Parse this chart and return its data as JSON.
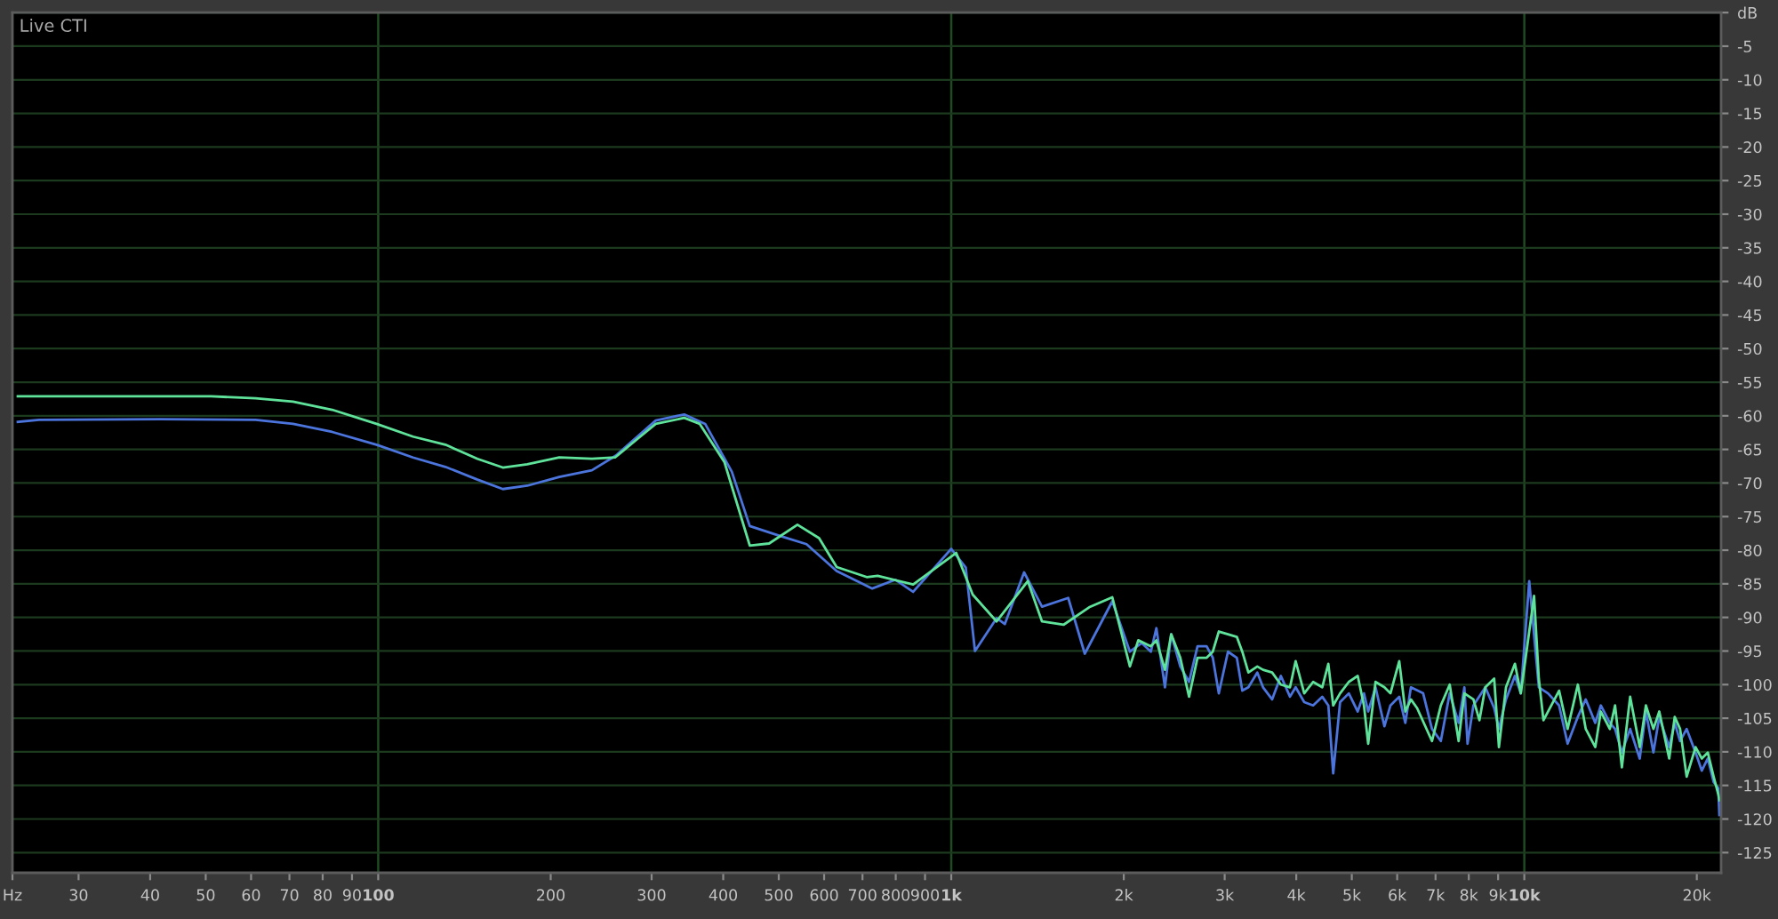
{
  "chart_data": {
    "type": "line",
    "title": "Live CTI",
    "log": "x",
    "xlim": [
      23,
      22050
    ],
    "ylim": [
      -128,
      0
    ],
    "xticks": [
      {
        "value": 23,
        "label": "Hz"
      },
      30,
      40,
      50,
      60,
      70,
      80,
      90,
      100,
      200,
      300,
      400,
      500,
      600,
      700,
      800,
      900,
      {
        "value": 1000,
        "label": "1k"
      },
      {
        "value": 2000,
        "label": "2k"
      },
      {
        "value": 3000,
        "label": "3k"
      },
      {
        "value": 4000,
        "label": "4k"
      },
      {
        "value": 5000,
        "label": "5k"
      },
      {
        "value": 6000,
        "label": "6k"
      },
      {
        "value": 7000,
        "label": "7k"
      },
      {
        "value": 8000,
        "label": "8k"
      },
      {
        "value": 9000,
        "label": "9k"
      },
      {
        "value": 10000,
        "label": "10k"
      },
      {
        "value": 20000,
        "label": "20k"
      }
    ],
    "yticks": [
      {
        "value": 0,
        "label": "dB"
      },
      -5,
      -10,
      -15,
      -20,
      -25,
      -30,
      -35,
      -40,
      -45,
      -50,
      -55,
      -60,
      -65,
      -70,
      -75,
      -80,
      -85,
      -90,
      -95,
      -100,
      -105,
      -110,
      -115,
      -120,
      -125
    ],
    "grid": "y",
    "marker": "none",
    "line_style": "solid",
    "ref_lines": [
      {
        "axis": "x",
        "value": 100,
        "color": "#1f4a22"
      },
      {
        "axis": "x",
        "value": 1000,
        "color": "#1f4a22"
      },
      {
        "axis": "x",
        "value": 10000,
        "color": "#1f4a22"
      }
    ],
    "series": [
      {
        "color": "#4b74dc",
        "x": [
          23.5,
          25.6,
          41.6,
          61.1,
          71,
          83.1,
          99.3,
          115,
          131,
          149,
          165,
          182,
          207,
          236,
          260,
          305,
          342,
          372,
          414,
          445,
          499,
          559,
          631,
          728,
          799,
          858,
          1000,
          1060,
          1100,
          1200,
          1240,
          1340,
          1440,
          1600,
          1710,
          1910,
          2050,
          2150,
          2230,
          2280,
          2360,
          2420,
          2510,
          2600,
          2690,
          2790,
          2860,
          2930,
          3040,
          3150,
          3220,
          3300,
          3420,
          3500,
          3630,
          3760,
          3900,
          3990,
          4130,
          4280,
          4440,
          4550,
          4640,
          4770,
          4940,
          5120,
          5250,
          5340,
          5500,
          5700,
          5840,
          6050,
          6200,
          6340,
          6660,
          6900,
          7150,
          7410,
          7680,
          7860,
          7960,
          8150,
          8550,
          8860,
          9030,
          9290,
          9630,
          9860,
          10200,
          10600,
          11000,
          11500,
          11900,
          12400,
          12800,
          13300,
          13600,
          14100,
          14400,
          14800,
          15300,
          15900,
          16300,
          16800,
          17200,
          17900,
          18300,
          18700,
          19200,
          19900,
          20400,
          20900,
          21400,
          21800,
          21900
        ],
        "values": [
          -60.9,
          -60.6,
          -60.5,
          -60.6,
          -61.2,
          -62.4,
          -64.3,
          -66.2,
          -67.6,
          -69.5,
          -70.9,
          -70.4,
          -69.1,
          -68.1,
          -65.9,
          -60.7,
          -59.8,
          -61.2,
          -68.3,
          -76.4,
          -77.8,
          -79.1,
          -83.1,
          -85.7,
          -84.4,
          -86.2,
          -79.8,
          -82.6,
          -95.0,
          -90.1,
          -91.0,
          -83.3,
          -88.4,
          -87.1,
          -95.4,
          -87.6,
          -95.1,
          -93.8,
          -95.1,
          -91.6,
          -100.4,
          -92.5,
          -97.3,
          -99.6,
          -94.3,
          -94.3,
          -96.0,
          -101.3,
          -95.1,
          -96.0,
          -100.9,
          -100.4,
          -98.2,
          -100.4,
          -102.2,
          -98.7,
          -101.8,
          -100.4,
          -102.6,
          -103.1,
          -101.8,
          -103.1,
          -113.2,
          -102.6,
          -101.3,
          -104.0,
          -101.3,
          -104.0,
          -100.4,
          -106.2,
          -103.1,
          -101.8,
          -105.7,
          -100.4,
          -101.3,
          -106.6,
          -108.4,
          -101.3,
          -105.7,
          -100.4,
          -108.8,
          -103.1,
          -100.4,
          -103.5,
          -106.6,
          -102.2,
          -98.7,
          -101.3,
          -84.6,
          -100.4,
          -101.3,
          -103.1,
          -108.8,
          -104.8,
          -102.2,
          -105.7,
          -103.1,
          -105.7,
          -106.6,
          -110.1,
          -106.6,
          -111.0,
          -104.0,
          -110.1,
          -104.8,
          -109.3,
          -105.7,
          -108.4,
          -106.6,
          -110.1,
          -112.8,
          -111.0,
          -114.5,
          -115.4,
          -119.4
        ]
      },
      {
        "color": "#5fe39b",
        "x": [
          23.5,
          51.1,
          61.1,
          71,
          83.1,
          99.3,
          115,
          131,
          149,
          165,
          182,
          207,
          236,
          259,
          282,
          305,
          342,
          364,
          402,
          445,
          481,
          539,
          588,
          631,
          712,
          744,
          858,
          1020,
          1090,
          1200,
          1360,
          1440,
          1570,
          1740,
          1910,
          2050,
          2120,
          2230,
          2280,
          2360,
          2420,
          2510,
          2600,
          2690,
          2790,
          2860,
          2930,
          3040,
          3150,
          3220,
          3300,
          3420,
          3500,
          3630,
          3760,
          3900,
          3990,
          4130,
          4280,
          4440,
          4550,
          4640,
          4770,
          4940,
          5120,
          5250,
          5340,
          5500,
          5700,
          5840,
          6050,
          6200,
          6340,
          6500,
          6900,
          7150,
          7410,
          7680,
          7860,
          8150,
          8350,
          8550,
          8860,
          9030,
          9290,
          9630,
          9860,
          10400,
          10600,
          10800,
          11000,
          11500,
          11900,
          12400,
          12800,
          13300,
          13600,
          14100,
          14400,
          14800,
          15300,
          15900,
          16300,
          16800,
          17200,
          17900,
          18300,
          18700,
          19200,
          19900,
          20400,
          20900,
          21400,
          21800,
          21900
        ],
        "values": [
          -57.1,
          -57.1,
          -57.4,
          -57.9,
          -59.1,
          -61.2,
          -63.1,
          -64.3,
          -66.4,
          -67.7,
          -67.2,
          -66.2,
          -66.4,
          -66.2,
          -63.6,
          -61.2,
          -60.3,
          -61.2,
          -66.9,
          -79.3,
          -79.0,
          -76.2,
          -78.2,
          -82.5,
          -84.0,
          -83.8,
          -85.1,
          -80.4,
          -86.6,
          -90.6,
          -84.6,
          -90.6,
          -91.1,
          -88.5,
          -87.0,
          -97.3,
          -93.4,
          -94.3,
          -93.4,
          -97.8,
          -92.5,
          -96.0,
          -101.8,
          -96.0,
          -96.0,
          -95.1,
          -92.1,
          -92.5,
          -92.9,
          -95.1,
          -98.2,
          -97.3,
          -97.8,
          -98.2,
          -100.0,
          -100.4,
          -96.5,
          -101.3,
          -99.6,
          -100.4,
          -96.9,
          -103.1,
          -101.3,
          -99.6,
          -98.7,
          -103.1,
          -108.8,
          -99.6,
          -100.4,
          -101.3,
          -96.5,
          -104.0,
          -102.2,
          -103.5,
          -108.4,
          -103.1,
          -100.0,
          -108.4,
          -101.3,
          -102.2,
          -105.3,
          -100.4,
          -99.1,
          -109.3,
          -100.4,
          -96.9,
          -101.3,
          -86.8,
          -99.1,
          -105.3,
          -104.0,
          -100.9,
          -106.6,
          -100.0,
          -106.6,
          -109.3,
          -104.0,
          -106.6,
          -103.1,
          -112.3,
          -101.8,
          -109.3,
          -103.1,
          -106.6,
          -104.0,
          -111.0,
          -104.8,
          -106.6,
          -113.7,
          -109.3,
          -111.0,
          -110.1,
          -113.7,
          -116.3,
          -117.2
        ]
      }
    ]
  }
}
